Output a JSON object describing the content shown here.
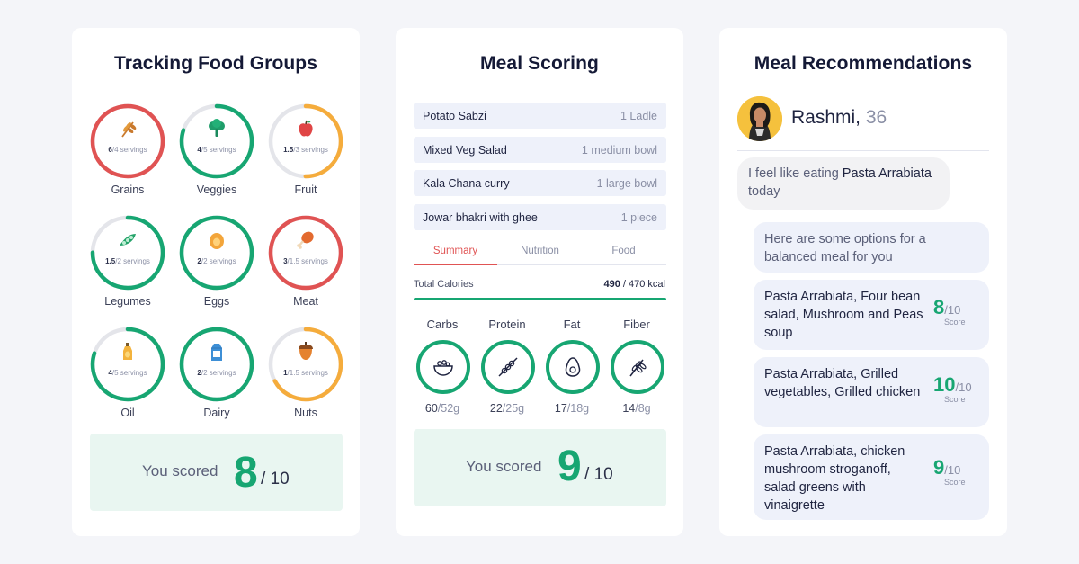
{
  "colors": {
    "green": "#17a672",
    "red": "#e05353",
    "orange": "#f5ac3c",
    "track": "#e4e5ea"
  },
  "food_groups": {
    "title": "Tracking Food Groups",
    "items": [
      {
        "name": "Grains",
        "value": "6",
        "target": "4",
        "unit": "servings",
        "status": "over",
        "progress": 1.0,
        "icon": "wheat-icon"
      },
      {
        "name": "Veggies",
        "value": "4",
        "target": "5",
        "unit": "servings",
        "status": "good",
        "progress": 0.8,
        "icon": "broccoli-icon"
      },
      {
        "name": "Fruit",
        "value": "1.5",
        "target": "3",
        "unit": "servings",
        "status": "under",
        "progress": 0.5,
        "icon": "apple-icon"
      },
      {
        "name": "Legumes",
        "value": "1.5",
        "target": "2",
        "unit": "servings",
        "status": "good",
        "progress": 0.75,
        "icon": "peapod-icon"
      },
      {
        "name": "Eggs",
        "value": "2",
        "target": "2",
        "unit": "servings",
        "status": "good",
        "progress": 1.0,
        "icon": "egg-icon"
      },
      {
        "name": "Meat",
        "value": "3",
        "target": "1.5",
        "unit": "servings",
        "status": "over",
        "progress": 1.0,
        "icon": "drumstick-icon"
      },
      {
        "name": "Oil",
        "value": "4",
        "target": "5",
        "unit": "servings",
        "status": "good",
        "progress": 0.8,
        "icon": "oil-bottle-icon"
      },
      {
        "name": "Dairy",
        "value": "2",
        "target": "2",
        "unit": "servings",
        "status": "good",
        "progress": 1.0,
        "icon": "milk-carton-icon"
      },
      {
        "name": "Nuts",
        "value": "1",
        "target": "1.5",
        "unit": "servings",
        "status": "under",
        "progress": 0.67,
        "icon": "nut-icon"
      }
    ],
    "score_label": "You scored",
    "score": "8",
    "score_max": "/ 10"
  },
  "meal_scoring": {
    "title": "Meal Scoring",
    "meals": [
      {
        "name": "Potato Sabzi",
        "qty": "1 Ladle"
      },
      {
        "name": "Mixed Veg Salad",
        "qty": "1 medium bowl"
      },
      {
        "name": "Kala Chana curry",
        "qty": "1 large bowl"
      },
      {
        "name": "Jowar bhakri with ghee",
        "qty": "1 piece"
      }
    ],
    "tabs": [
      "Summary",
      "Nutrition",
      "Food"
    ],
    "active_tab": "Summary",
    "calories_label": "Total Calories",
    "calories_value": "490",
    "calories_target": "/ 470 kcal",
    "calories_progress": 1.0,
    "nutrients": [
      {
        "name": "Carbs",
        "value": "60",
        "target": "/52g",
        "icon": "bowl-icon"
      },
      {
        "name": "Protein",
        "value": "22",
        "target": "/25g",
        "icon": "skewer-icon"
      },
      {
        "name": "Fat",
        "value": "17",
        "target": "/18g",
        "icon": "avocado-icon"
      },
      {
        "name": "Fiber",
        "value": "14",
        "target": "/8g",
        "icon": "grain-stalk-icon"
      }
    ],
    "score_label": "You scored",
    "score": "9",
    "score_max": "/ 10"
  },
  "recommendations": {
    "title": "Meal Recommendations",
    "user_name": "Rashmi,",
    "user_age": "36",
    "user_msg_pre": "I feel like eating",
    "user_msg_dish": "Pasta Arrabiata",
    "user_msg_post": "today",
    "bot_msg": "Here are some options for a balanced meal for you",
    "options": [
      {
        "text": "Pasta Arrabiata, Four bean salad, Mushroom and Peas soup",
        "score": "8",
        "max": "/10",
        "label": "Score"
      },
      {
        "text": "Pasta Arrabiata, Grilled vegetables, Grilled chicken",
        "score": "10",
        "max": "/10",
        "label": "Score"
      },
      {
        "text": "Pasta Arrabiata, chicken mushroom stroganoff, salad greens with vinaigrette",
        "score": "9",
        "max": "/10",
        "label": "Score"
      }
    ]
  }
}
